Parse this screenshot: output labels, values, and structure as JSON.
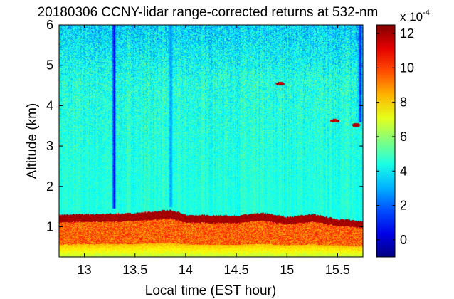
{
  "chart_data": {
    "type": "heatmap",
    "title": "20180306 CCNY-lidar range-corrected returns at 532-nm",
    "xlabel": "Local time (EST hour)",
    "ylabel": "Altitude (km)",
    "xlim": [
      12.75,
      15.75
    ],
    "ylim": [
      0.25,
      6
    ],
    "x_ticks": [
      "13",
      "13.5",
      "14",
      "14.5",
      "15",
      "15.5"
    ],
    "x_tick_values": [
      13,
      13.5,
      14,
      14.5,
      15,
      15.5
    ],
    "y_ticks": [
      "1",
      "2",
      "3",
      "4",
      "5",
      "6"
    ],
    "y_tick_values": [
      1,
      2,
      3,
      4,
      5,
      6
    ],
    "colorbar": {
      "colormap": "jet",
      "range": [
        -1,
        12.5
      ],
      "ticks": [
        "0",
        "2",
        "4",
        "6",
        "8",
        "10",
        "12"
      ],
      "tick_values": [
        0,
        2,
        4,
        6,
        8,
        10,
        12
      ],
      "multiplier_base": "x 10",
      "multiplier_exponent": "-4"
    },
    "features": {
      "background_value": 4.5,
      "boundary_layer": {
        "surface_value": 6.5,
        "layer_value": 9.5,
        "top_value": 12,
        "top_altitude_km": [
          [
            12.75,
            1.3
          ],
          [
            13.0,
            1.32
          ],
          [
            13.3,
            1.33
          ],
          [
            13.5,
            1.35
          ],
          [
            13.85,
            1.42
          ],
          [
            14.0,
            1.3
          ],
          [
            14.5,
            1.28
          ],
          [
            14.75,
            1.35
          ],
          [
            15.0,
            1.25
          ],
          [
            15.25,
            1.32
          ],
          [
            15.5,
            1.2
          ],
          [
            15.75,
            1.15
          ]
        ]
      },
      "cloud_free_columns": [
        {
          "time": 13.29,
          "value": 0.5,
          "from_altitude_km": 1.45
        },
        {
          "time": 13.85,
          "value": 2.5,
          "from_altitude_km": 1.5
        },
        {
          "time": 15.72,
          "value": 1.0,
          "from_altitude_km": 3.6
        }
      ],
      "cloud_patches": [
        {
          "time": 14.93,
          "altitude_km": 4.55,
          "value": 12.5
        },
        {
          "time": 15.47,
          "altitude_km": 3.63,
          "value": 12.5
        },
        {
          "time": 15.68,
          "altitude_km": 3.53,
          "value": 12.5
        }
      ]
    }
  }
}
